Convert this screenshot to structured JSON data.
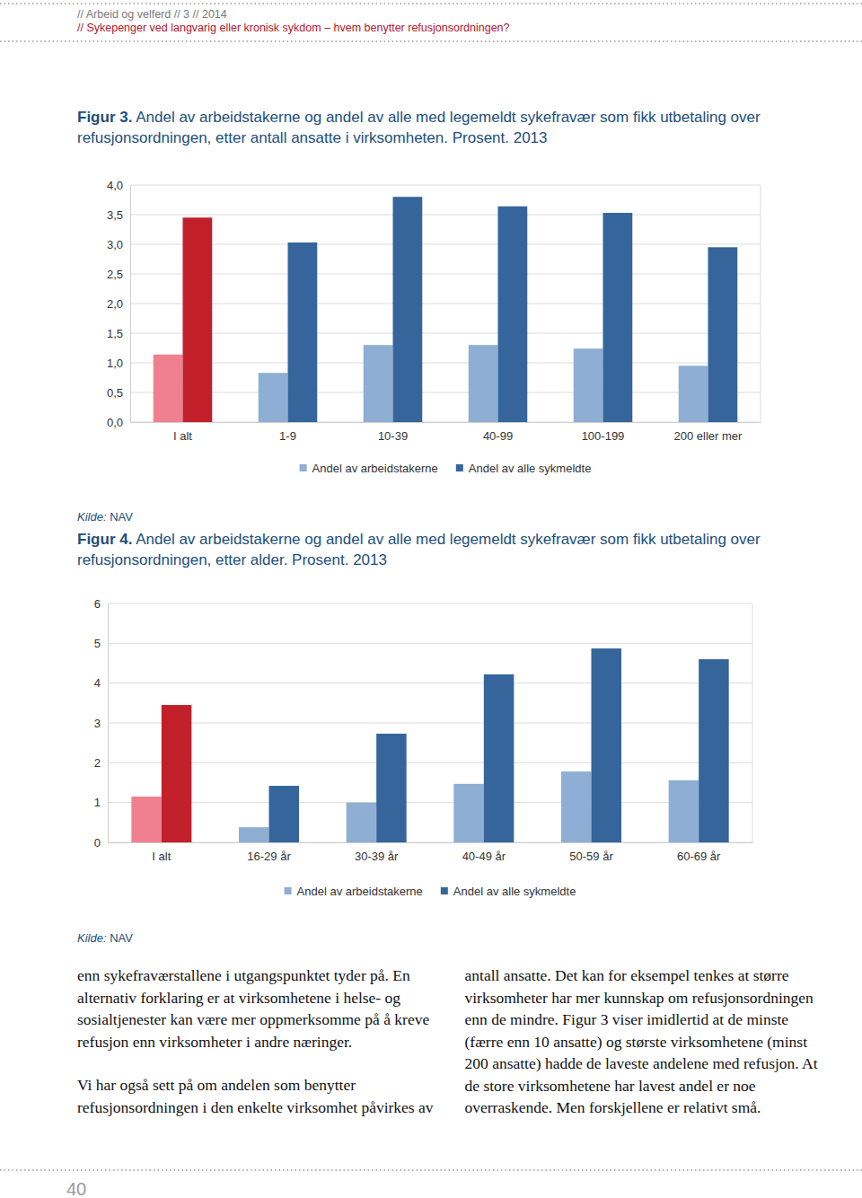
{
  "header": {
    "line1": "// Arbeid og velferd // 3 // 2014",
    "line2": "// Sykepenger ved langvarig eller kronisk sykdom – hvem benytter refusjonsordningen?"
  },
  "figures": [
    {
      "label": "Figur 3.",
      "source_label": "Kilde:",
      "source": "NAV"
    },
    {
      "label": "Figur 4.",
      "source_label": "Kilde:",
      "source": "NAV"
    }
  ],
  "chart_data": [
    {
      "type": "bar",
      "title": "Andel av arbeidstakerne og andel av alle med legemeldt sykefravær som fikk utbetaling over refusjonsordningen, etter antall ansatte i virksomheten. Prosent. 2013",
      "categories": [
        "I alt",
        "1-9",
        "10-39",
        "40-99",
        "100-199",
        "200 eller mer"
      ],
      "series": [
        {
          "name": "Andel av arbeidstakerne",
          "color": "#8eaed4",
          "colors": [
            "#f08090",
            "#8eaed4",
            "#8eaed4",
            "#8eaed4",
            "#8eaed4",
            "#8eaed4"
          ],
          "values": [
            1.14,
            0.83,
            1.3,
            1.3,
            1.24,
            0.95
          ]
        },
        {
          "name": "Andel av alle sykmeldte",
          "color": "#35659a",
          "colors": [
            "#c1202b",
            "#35659a",
            "#35659a",
            "#35659a",
            "#35659a",
            "#35659a"
          ],
          "values": [
            3.45,
            3.03,
            3.8,
            3.64,
            3.53,
            2.95
          ]
        }
      ],
      "ylim": [
        0,
        4
      ],
      "yticks": [
        {
          "value": 0,
          "label": "0,0"
        },
        {
          "value": 0.5,
          "label": "0,5"
        },
        {
          "value": 1,
          "label": "1,0"
        },
        {
          "value": 1.5,
          "label": "1,5"
        },
        {
          "value": 2,
          "label": "2,0"
        },
        {
          "value": 2.5,
          "label": "2,5"
        },
        {
          "value": 3,
          "label": "3,0"
        },
        {
          "value": 3.5,
          "label": "3,5"
        },
        {
          "value": 4,
          "label": "4,0"
        }
      ],
      "grid": true,
      "legend": "bottom"
    },
    {
      "type": "bar",
      "title": "Andel av arbeidstakerne og andel av alle med legemeldt sykefravær som fikk utbetaling over refusjonsordningen, etter alder. Prosent. 2013",
      "categories": [
        "I alt",
        "16-29 år",
        "30-39 år",
        "40-49 år",
        "50-59 år",
        "60-69 år"
      ],
      "series": [
        {
          "name": "Andel av arbeidstakerne",
          "color": "#8eaed4",
          "colors": [
            "#f08090",
            "#8eaed4",
            "#8eaed4",
            "#8eaed4",
            "#8eaed4",
            "#8eaed4"
          ],
          "values": [
            1.15,
            0.38,
            1.0,
            1.47,
            1.78,
            1.56
          ]
        },
        {
          "name": "Andel av alle sykmeldte",
          "color": "#35659a",
          "colors": [
            "#c1202b",
            "#35659a",
            "#35659a",
            "#35659a",
            "#35659a",
            "#35659a"
          ],
          "values": [
            3.45,
            1.42,
            2.73,
            4.22,
            4.87,
            4.6
          ]
        }
      ],
      "ylim": [
        0,
        6
      ],
      "yticks": [
        0,
        1,
        2,
        3,
        4,
        5,
        6
      ],
      "grid": true,
      "legend": "bottom"
    }
  ],
  "body": {
    "paragraphs": [
      "enn sykefraværstallene i utgangspunktet tyder på. En alternativ forklaring er at virksomhetene i helse- og sosialtjenester kan være mer oppmerksomme på å kreve refusjon enn virksomheter i andre næringer.",
      "Vi har også sett på om andelen som benytter refusjonsordningen i den enkelte virksomhet påvirkes av antall ansatte. Det kan for eksempel tenkes at større virksomheter har mer kunnskap om refusjonsordningen enn de mindre. Figur 3 viser imidlertid at de minste (færre enn 10 ansatte) og største virksomhetene (minst 200 ansatte) hadde de laveste andelene med refusjon. At de store virksomhetene har lavest andel er noe overraskende. Men forskjellene er relativt små."
    ]
  },
  "page_number": "40"
}
